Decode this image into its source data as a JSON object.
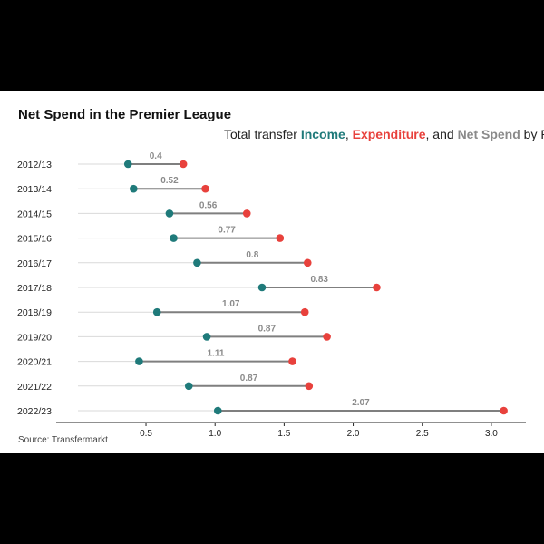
{
  "colors": {
    "background": "#000000",
    "panel": "#ffffff",
    "income": "#1f7a7a",
    "expenditure": "#e8413c",
    "net_spend": "#8a8a8a"
  },
  "chart_data": {
    "type": "dumbbell",
    "title": "Net Spend in the Premier League",
    "subtitle": {
      "prefix": "Total transfer ",
      "income_label": "Income",
      "sep1": ", ",
      "expenditure_label": "Expenditure",
      "sep2": ", and ",
      "net_label": "Net Spend",
      "suffix": " by Premier League clubs"
    },
    "caption": "Source: Transfermarkt",
    "categories": [
      "2012/13",
      "2013/14",
      "2014/15",
      "2015/16",
      "2016/17",
      "2017/18",
      "2018/19",
      "2019/20",
      "2020/21",
      "2021/22",
      "2022/23"
    ],
    "series": [
      {
        "name": "Income",
        "values": [
          0.37,
          0.41,
          0.67,
          0.7,
          0.87,
          1.34,
          0.58,
          0.94,
          0.45,
          0.81,
          1.02
        ]
      },
      {
        "name": "Expenditure",
        "values": [
          0.77,
          0.93,
          1.23,
          1.47,
          1.67,
          2.17,
          1.65,
          1.81,
          1.56,
          1.68,
          3.09
        ]
      }
    ],
    "net_labels": [
      "0.4",
      "0.52",
      "0.56",
      "0.77",
      "0.8",
      "0.83",
      "1.07",
      "0.87",
      "1.11",
      "0.87",
      "2.07"
    ],
    "x_ticks": [
      "0.5",
      "1.0",
      "1.5",
      "2.0",
      "2.5",
      "3.0"
    ],
    "xlim": [
      -0.15,
      3.25
    ],
    "grid": "horizontal row guides only"
  }
}
